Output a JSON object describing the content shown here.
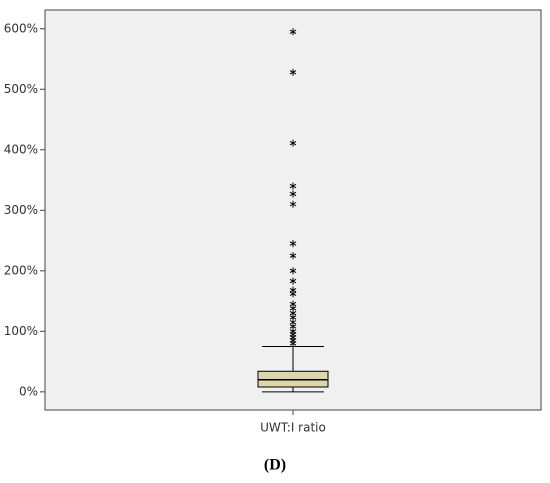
{
  "chart_data": {
    "type": "box",
    "categories": [
      "UWT:I ratio"
    ],
    "boxes": [
      {
        "min": 0,
        "q1": 8,
        "median": 20,
        "q3": 34,
        "max": 75,
        "outliers": [
          595,
          528,
          411,
          340,
          327,
          310,
          245,
          225,
          200,
          183,
          168,
          162,
          145,
          138,
          130,
          123,
          115,
          108,
          100,
          95,
          90,
          85,
          80
        ]
      }
    ],
    "color": "#dcd6ab",
    "ylim": [
      -30,
      631
    ],
    "yticks": [
      {
        "value": 0,
        "label": "0%"
      },
      {
        "value": 100,
        "label": "100%"
      },
      {
        "value": 200,
        "label": "200%"
      },
      {
        "value": 300,
        "label": "300%"
      },
      {
        "value": 400,
        "label": "400%"
      },
      {
        "value": 500,
        "label": "500%"
      },
      {
        "value": 600,
        "label": "600%"
      }
    ],
    "grid": false
  },
  "caption": "(D)"
}
